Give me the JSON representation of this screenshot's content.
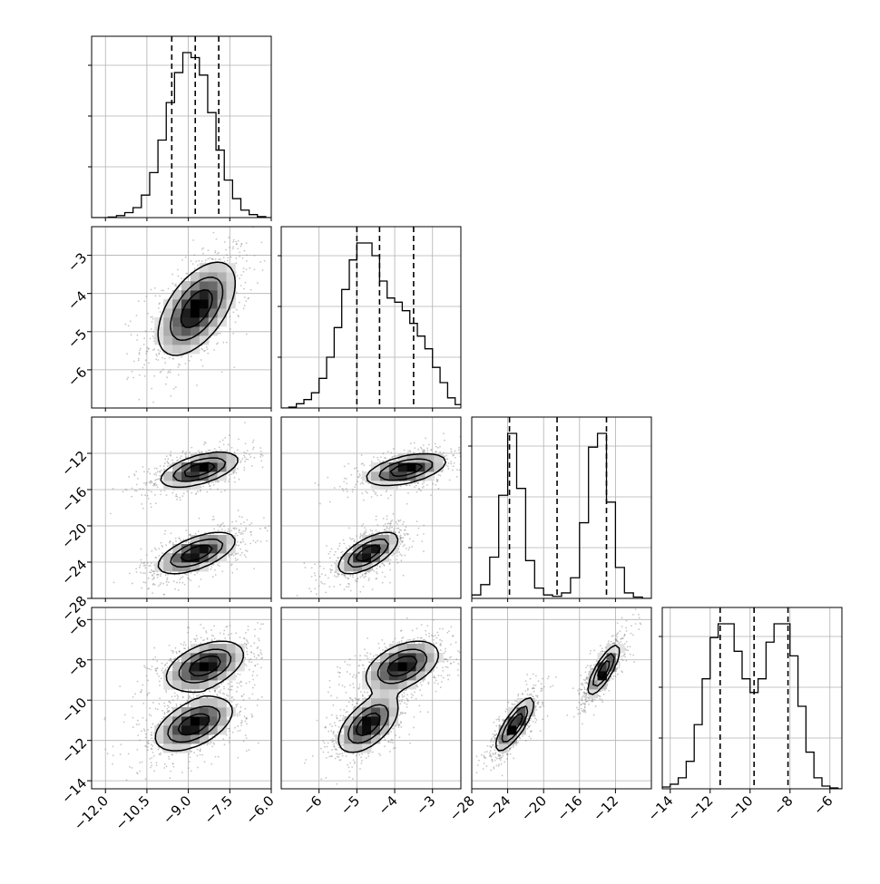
{
  "chart_data": {
    "type": "corner",
    "parameters": [
      {
        "index": 0,
        "range": [
          -12.5,
          -6.0
        ],
        "ticks": [
          -12.0,
          -10.5,
          -9.0,
          -7.5,
          -6.0
        ],
        "tick_labels": [
          "−12.0",
          "−10.5",
          "−9.0",
          "−7.5",
          "−6.0"
        ]
      },
      {
        "index": 1,
        "range": [
          -7.0,
          -2.25
        ],
        "ticks": [
          -6,
          -5,
          -4,
          -3
        ],
        "tick_labels": [
          "−6",
          "−5",
          "−4",
          "−3"
        ]
      },
      {
        "index": 2,
        "range": [
          -28.0,
          -8.0
        ],
        "ticks": [
          -28,
          -24,
          -20,
          -16,
          -12
        ],
        "tick_labels": [
          "−28",
          "−24",
          "−20",
          "−16",
          "−12"
        ]
      },
      {
        "index": 3,
        "range": [
          -14.4,
          -5.4
        ],
        "ticks": [
          -14,
          -12,
          -10,
          -8,
          -6
        ],
        "tick_labels": [
          "−14",
          "−12",
          "−10",
          "−8",
          "−6"
        ]
      }
    ],
    "histograms": [
      {
        "param": 0,
        "bin_edges": [
          -12.5,
          -12.2,
          -11.9,
          -11.6,
          -11.3,
          -11.0,
          -10.7,
          -10.4,
          -10.1,
          -9.8,
          -9.5,
          -9.2,
          -8.9,
          -8.6,
          -8.3,
          -8.0,
          -7.7,
          -7.4,
          -7.1,
          -6.8,
          -6.5,
          -6.2,
          -6.0
        ],
        "counts": [
          0,
          0,
          1,
          4,
          10,
          20,
          45,
          90,
          155,
          230,
          290,
          330,
          320,
          285,
          210,
          135,
          75,
          38,
          15,
          6,
          2,
          0
        ],
        "quantiles": [
          -9.6,
          -8.75,
          -7.9
        ]
      },
      {
        "param": 1,
        "bin_edges": [
          -7.0,
          -6.8,
          -6.6,
          -6.4,
          -6.2,
          -6.0,
          -5.8,
          -5.6,
          -5.4,
          -5.2,
          -5.0,
          -4.8,
          -4.6,
          -4.4,
          -4.2,
          -4.0,
          -3.8,
          -3.6,
          -3.4,
          -3.2,
          -3.0,
          -2.8,
          -2.6,
          -2.4,
          -2.25
        ],
        "counts": [
          0,
          1,
          5,
          10,
          18,
          35,
          60,
          95,
          140,
          175,
          195,
          195,
          180,
          150,
          130,
          125,
          115,
          100,
          85,
          70,
          48,
          30,
          12,
          4
        ],
        "quantiles": [
          -5.0,
          -4.4,
          -3.5
        ]
      },
      {
        "param": 2,
        "bin_edges": [
          -28,
          -27,
          -26,
          -25,
          -24,
          -23,
          -22,
          -21,
          -20,
          -19,
          -18,
          -17,
          -16,
          -15,
          -14,
          -13,
          -12,
          -11,
          -10,
          -9,
          -8
        ],
        "counts": [
          5,
          20,
          60,
          150,
          240,
          160,
          55,
          15,
          5,
          3,
          8,
          30,
          110,
          220,
          240,
          140,
          45,
          8,
          2,
          0
        ],
        "quantiles": [
          -23.8,
          -18.5,
          -13.0
        ]
      },
      {
        "param": 3,
        "bin_edges": [
          -14.4,
          -14.0,
          -13.6,
          -13.2,
          -12.8,
          -12.4,
          -12.0,
          -11.6,
          -11.2,
          -10.8,
          -10.4,
          -10.0,
          -9.6,
          -9.2,
          -8.8,
          -8.4,
          -8.0,
          -7.6,
          -7.2,
          -6.8,
          -6.4,
          -6.0,
          -5.6,
          -5.4
        ],
        "counts": [
          2,
          5,
          12,
          30,
          70,
          120,
          165,
          180,
          180,
          150,
          120,
          105,
          120,
          160,
          180,
          180,
          145,
          90,
          40,
          12,
          3,
          1,
          0
        ],
        "quantiles": [
          -11.5,
          -9.8,
          -8.1
        ]
      }
    ],
    "pairs": [
      {
        "x": 0,
        "y": 1,
        "modes": [
          {
            "mx": -8.7,
            "my": -4.4,
            "sx": 0.8,
            "sy": 0.7,
            "rho": 0.55
          }
        ]
      },
      {
        "x": 0,
        "y": 2,
        "modes": [
          {
            "mx": -8.6,
            "my": -13.8,
            "sx": 0.8,
            "sy": 1.1,
            "rho": 0.55
          },
          {
            "mx": -8.7,
            "my": -23.0,
            "sx": 0.8,
            "sy": 1.3,
            "rho": 0.6
          }
        ]
      },
      {
        "x": 1,
        "y": 2,
        "modes": [
          {
            "mx": -3.7,
            "my": -13.8,
            "sx": 0.6,
            "sy": 1.0,
            "rho": 0.5
          },
          {
            "mx": -4.7,
            "my": -23.0,
            "sx": 0.45,
            "sy": 1.3,
            "rho": 0.65
          }
        ]
      },
      {
        "x": 0,
        "y": 3,
        "modes": [
          {
            "mx": -8.4,
            "my": -8.3,
            "sx": 0.8,
            "sy": 0.7,
            "rho": 0.45
          },
          {
            "mx": -8.8,
            "my": -11.2,
            "sx": 0.8,
            "sy": 0.75,
            "rho": 0.5
          }
        ]
      },
      {
        "x": 1,
        "y": 3,
        "modes": [
          {
            "mx": -3.8,
            "my": -8.3,
            "sx": 0.55,
            "sy": 0.7,
            "rho": 0.45
          },
          {
            "mx": -4.7,
            "my": -11.2,
            "sx": 0.45,
            "sy": 0.8,
            "rho": 0.55
          }
        ]
      },
      {
        "x": 2,
        "y": 3,
        "modes": [
          {
            "mx": -13.3,
            "my": -8.5,
            "sx": 1.0,
            "sy": 0.7,
            "rho": 0.8
          },
          {
            "mx": -23.2,
            "my": -11.2,
            "sx": 1.2,
            "sy": 0.75,
            "rho": 0.8
          }
        ]
      }
    ],
    "grid": true,
    "contour_levels": [
      0.22,
      0.5,
      0.78
    ],
    "colors": {
      "line": "#000000",
      "grid": "#b0b0b0",
      "scatter": "#808080",
      "density_max": "#000000"
    }
  }
}
